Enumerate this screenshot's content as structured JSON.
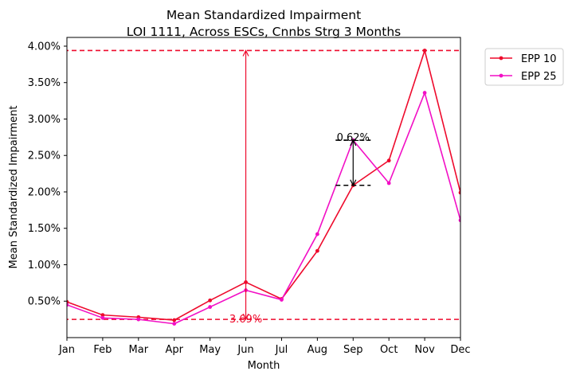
{
  "chart_data": {
    "type": "line",
    "title": "Mean Standardized Impairment",
    "subtitle": "LOI 1111, Across ESCs, Cnnbs Strg 3 Months",
    "xlabel": "Month",
    "ylabel": "Mean Standardized Impairment",
    "categories": [
      "Jan",
      "Feb",
      "Mar",
      "Apr",
      "May",
      "Jun",
      "Jul",
      "Aug",
      "Sep",
      "Oct",
      "Nov",
      "Dec"
    ],
    "ylim": [
      0.0,
      4.12
    ],
    "yticks": [
      0.5,
      1.0,
      1.5,
      2.0,
      2.5,
      3.0,
      3.5,
      4.0
    ],
    "ytick_labels": [
      "0.50%",
      "1.00%",
      "1.50%",
      "2.00%",
      "2.50%",
      "3.00%",
      "3.50%",
      "4.00%"
    ],
    "grid": false,
    "legend_position": "outside-top-right",
    "series": [
      {
        "name": "EPP 10",
        "color": "#ee0a2c",
        "values": [
          0.49,
          0.31,
          0.28,
          0.24,
          0.51,
          0.76,
          0.53,
          1.19,
          2.09,
          2.43,
          3.94,
          1.99
        ]
      },
      {
        "name": "EPP 25",
        "color": "#f20fc5",
        "values": [
          0.45,
          0.27,
          0.25,
          0.19,
          0.42,
          0.65,
          0.52,
          1.42,
          2.71,
          2.12,
          3.36,
          1.61
        ]
      }
    ],
    "reference_lines": [
      {
        "value": 3.94,
        "color": "#ee0a2c"
      },
      {
        "value": 0.25,
        "color": "#ee0a2c"
      }
    ],
    "annotations": [
      {
        "text": "3.69%",
        "x_index": 5,
        "from": 0.25,
        "to": 3.94,
        "color": "#ee0a2c"
      },
      {
        "text": "0.62%",
        "x_index": 8,
        "from": 2.09,
        "to": 2.71,
        "color": "#000000"
      }
    ]
  }
}
